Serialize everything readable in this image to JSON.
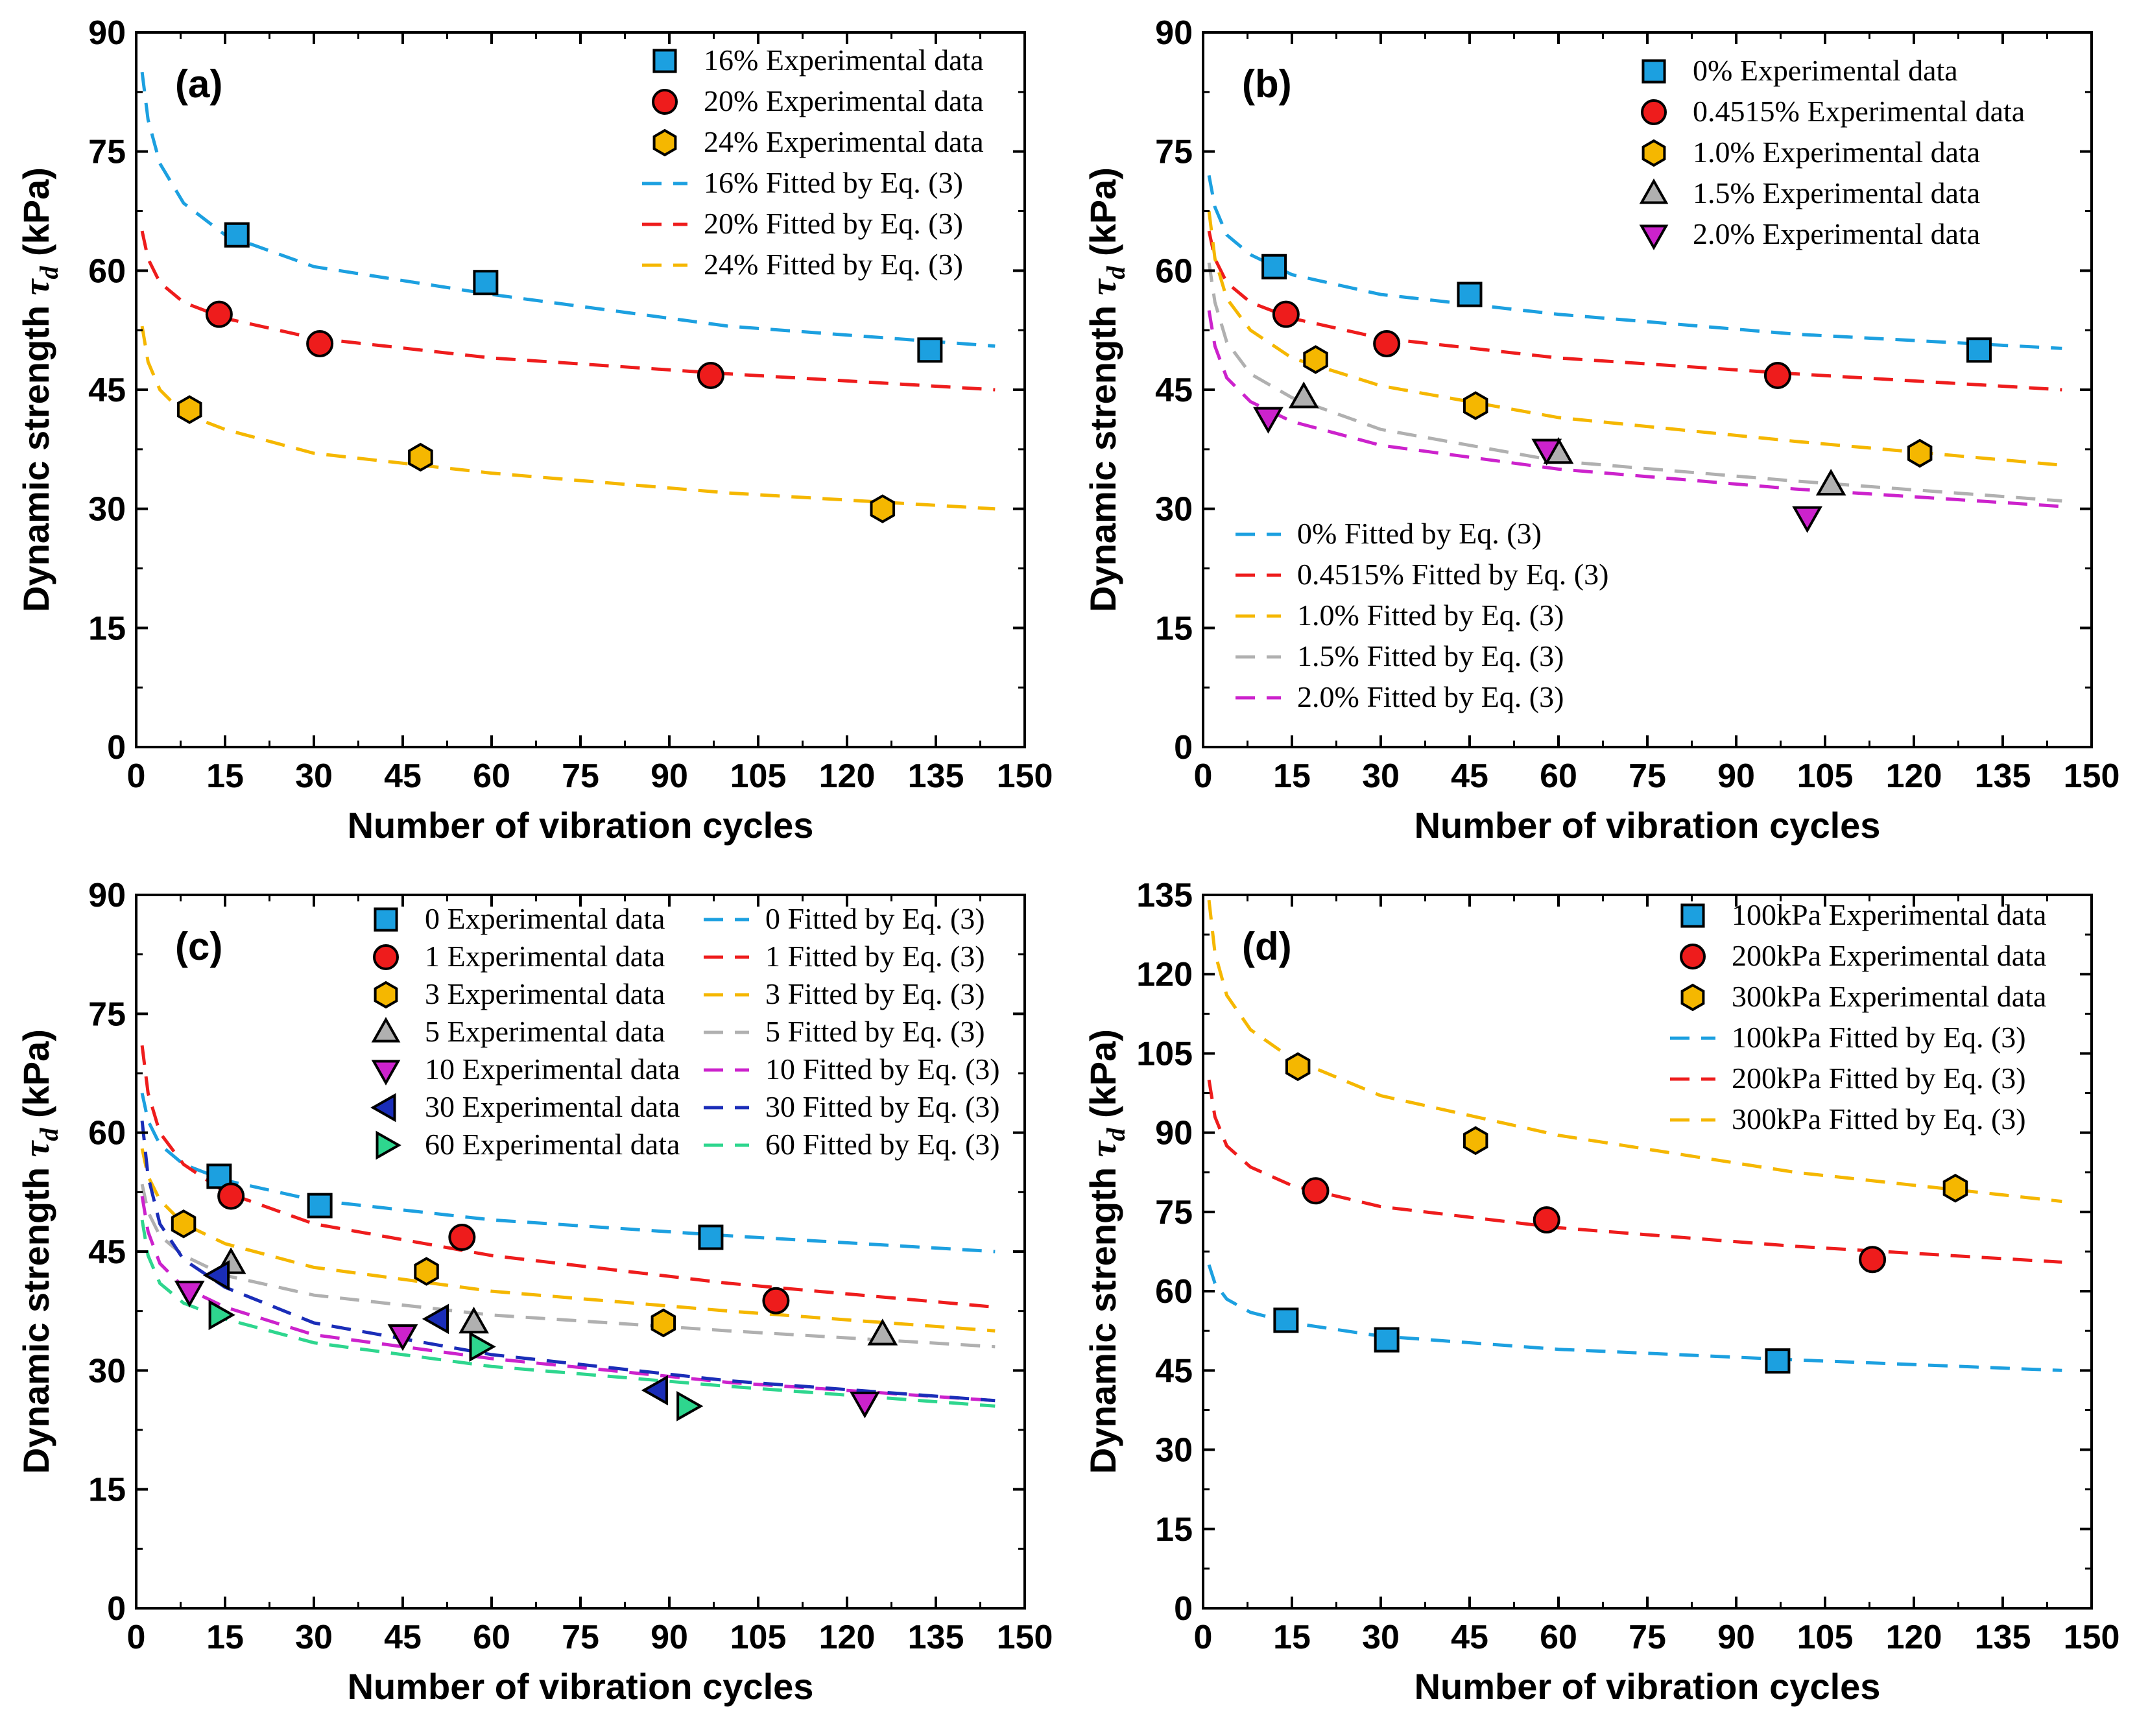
{
  "figure_title": "",
  "chart_data": [
    {
      "type": "scatter",
      "panel_label": "(a)",
      "xlabel": "Number of vibration cycles",
      "ylabel_main": "Dynamic strength",
      "ylabel_symbol": "τ",
      "ylabel_sub": "d",
      "ylabel_unit": "(kPa)",
      "xlim": [
        0,
        150
      ],
      "ylim": [
        0,
        90
      ],
      "xticks": [
        0,
        15,
        30,
        45,
        60,
        75,
        90,
        105,
        120,
        135,
        150
      ],
      "yticks": [
        0,
        15,
        30,
        45,
        60,
        75,
        90
      ],
      "legend_layout": "single-top-right",
      "series": [
        {
          "name": "16% Experimental data",
          "marker": "square",
          "color": "#1CA0E0",
          "x": [
            17,
            59,
            134
          ],
          "y": [
            64.5,
            58.5,
            50
          ]
        },
        {
          "name": "20% Experimental data",
          "marker": "circle",
          "color": "#EE1C1C",
          "x": [
            14,
            31,
            97
          ],
          "y": [
            54.5,
            50.8,
            46.8
          ]
        },
        {
          "name": "24% Experimental data",
          "marker": "hexagon",
          "color": "#F5B700",
          "x": [
            9,
            48,
            126
          ],
          "y": [
            42.5,
            36.5,
            30
          ]
        }
      ],
      "fits": [
        {
          "name": "16% Fitted by Eq. (3)",
          "color": "#1CA0E0",
          "x": [
            1,
            2,
            4,
            8,
            15,
            30,
            60,
            100,
            145
          ],
          "y": [
            85,
            79,
            73.5,
            68.5,
            64.5,
            60.5,
            57,
            53,
            50.5
          ]
        },
        {
          "name": "20% Fitted by Eq. (3)",
          "color": "#EE1C1C",
          "x": [
            1,
            2,
            4,
            8,
            15,
            30,
            60,
            100,
            145
          ],
          "y": [
            65,
            61.5,
            58.5,
            56,
            54,
            51.5,
            49,
            47,
            45
          ]
        },
        {
          "name": "24% Fitted by Eq. (3)",
          "color": "#F5B700",
          "x": [
            1,
            2,
            4,
            8,
            15,
            30,
            60,
            100,
            145
          ],
          "y": [
            53,
            48.5,
            45,
            42,
            40,
            37,
            34.5,
            32,
            30
          ]
        }
      ]
    },
    {
      "type": "scatter",
      "panel_label": "(b)",
      "xlabel": "Number of vibration cycles",
      "ylabel_main": "Dynamic strength",
      "ylabel_symbol": "τ",
      "ylabel_sub": "d",
      "ylabel_unit": "(kPa)",
      "xlim": [
        0,
        150
      ],
      "ylim": [
        0,
        90
      ],
      "xticks": [
        0,
        15,
        30,
        45,
        60,
        75,
        90,
        105,
        120,
        135,
        150
      ],
      "yticks": [
        0,
        15,
        30,
        45,
        60,
        75,
        90
      ],
      "legend_layout": "split-top-right-and-bottom-left",
      "series": [
        {
          "name": "0% Experimental data",
          "marker": "square",
          "color": "#1CA0E0",
          "x": [
            12,
            45,
            131
          ],
          "y": [
            60.5,
            57,
            50
          ]
        },
        {
          "name": "0.4515% Experimental data",
          "marker": "circle",
          "color": "#EE1C1C",
          "x": [
            14,
            31,
            97
          ],
          "y": [
            54.5,
            50.8,
            46.8
          ]
        },
        {
          "name": "1.0% Experimental data",
          "marker": "hexagon",
          "color": "#F5B700",
          "x": [
            19,
            46,
            121
          ],
          "y": [
            48.8,
            43,
            37
          ]
        },
        {
          "name": "1.5% Experimental data",
          "marker": "triangle-up",
          "color": "#B0B0B0",
          "x": [
            17,
            60,
            106
          ],
          "y": [
            44,
            37,
            33
          ]
        },
        {
          "name": "2.0% Experimental data",
          "marker": "triangle-down",
          "color": "#CC22CC",
          "x": [
            11,
            58,
            102
          ],
          "y": [
            41.5,
            37.5,
            29
          ]
        }
      ],
      "fits": [
        {
          "name": "0% Fitted by Eq. (3)",
          "color": "#1CA0E0",
          "x": [
            1,
            2,
            4,
            8,
            15,
            30,
            60,
            100,
            145
          ],
          "y": [
            72,
            68,
            64.5,
            62,
            59.5,
            57,
            54.5,
            52,
            50.2
          ]
        },
        {
          "name": "0.4515% Fitted by Eq. (3)",
          "color": "#EE1C1C",
          "x": [
            1,
            2,
            4,
            8,
            15,
            30,
            60,
            100,
            145
          ],
          "y": [
            65,
            61.5,
            58.5,
            56,
            54,
            51.5,
            49,
            47,
            45
          ]
        },
        {
          "name": "1.0% Fitted by Eq. (3)",
          "color": "#F5B700",
          "x": [
            1,
            2,
            4,
            8,
            15,
            30,
            60,
            100,
            145
          ],
          "y": [
            67.5,
            61.5,
            56.5,
            52.5,
            49,
            45.5,
            41.5,
            38.5,
            35.5
          ]
        },
        {
          "name": "1.5% Fitted by Eq. (3)",
          "color": "#B0B0B0",
          "x": [
            1,
            2,
            4,
            8,
            15,
            30,
            60,
            100,
            145
          ],
          "y": [
            61,
            56,
            51,
            47,
            44,
            40,
            36,
            33.5,
            31
          ]
        },
        {
          "name": "2.0% Fitted by Eq. (3)",
          "color": "#CC22CC",
          "x": [
            1,
            2,
            4,
            8,
            15,
            30,
            60,
            100,
            145
          ],
          "y": [
            55,
            50.5,
            46.5,
            43.5,
            41,
            38,
            35,
            32.5,
            30.3
          ]
        }
      ]
    },
    {
      "type": "scatter",
      "panel_label": "(c)",
      "xlabel": "Number of vibration cycles",
      "ylabel_main": "Dynamic strength",
      "ylabel_symbol": "τ",
      "ylabel_sub": "d",
      "ylabel_unit": "(kPa)",
      "xlim": [
        0,
        150
      ],
      "ylim": [
        0,
        90
      ],
      "xticks": [
        0,
        15,
        30,
        45,
        60,
        75,
        90,
        105,
        120,
        135,
        150
      ],
      "yticks": [
        0,
        15,
        30,
        45,
        60,
        75,
        90
      ],
      "legend_layout": "two-column-top-right",
      "series": [
        {
          "name": "0 Experimental data",
          "marker": "square",
          "color": "#1CA0E0",
          "x": [
            14,
            31,
            97
          ],
          "y": [
            54.5,
            50.8,
            46.8
          ]
        },
        {
          "name": "1 Experimental data",
          "marker": "circle",
          "color": "#EE1C1C",
          "x": [
            16,
            55,
            108
          ],
          "y": [
            52,
            46.8,
            38.8
          ]
        },
        {
          "name": "3 Experimental data",
          "marker": "hexagon",
          "color": "#F5B700",
          "x": [
            8,
            49,
            89
          ],
          "y": [
            48.5,
            42.5,
            36
          ]
        },
        {
          "name": "5 Experimental data",
          "marker": "triangle-up",
          "color": "#B0B0B0",
          "x": [
            16,
            57,
            126
          ],
          "y": [
            43.5,
            36,
            34.5
          ]
        },
        {
          "name": "10 Experimental data",
          "marker": "triangle-down",
          "color": "#CC22CC",
          "x": [
            9,
            45,
            123
          ],
          "y": [
            40,
            34.5,
            26
          ]
        },
        {
          "name": "30 Experimental data",
          "marker": "triangle-left",
          "color": "#1A2DB8",
          "x": [
            14,
            51,
            88
          ],
          "y": [
            42,
            36.5,
            27.5
          ]
        },
        {
          "name": "60 Experimental data",
          "marker": "triangle-right",
          "color": "#2ED68E",
          "x": [
            14,
            58,
            93
          ],
          "y": [
            37,
            33,
            25.5
          ]
        }
      ],
      "fits": [
        {
          "name": "0 Fitted by Eq. (3)",
          "color": "#1CA0E0",
          "x": [
            1,
            2,
            4,
            8,
            15,
            30,
            60,
            100,
            145
          ],
          "y": [
            65,
            61.5,
            58.5,
            56,
            54,
            51.5,
            49,
            47,
            45
          ]
        },
        {
          "name": "1 Fitted by Eq. (3)",
          "color": "#EE1C1C",
          "x": [
            1,
            2,
            4,
            8,
            15,
            30,
            60,
            100,
            145
          ],
          "y": [
            71,
            65,
            60,
            56,
            52.5,
            48.5,
            44.5,
            41,
            38
          ]
        },
        {
          "name": "3 Fitted by Eq. (3)",
          "color": "#F5B700",
          "x": [
            1,
            2,
            4,
            8,
            15,
            30,
            60,
            100,
            145
          ],
          "y": [
            58,
            54.5,
            51.5,
            48.5,
            46,
            43,
            40,
            37.5,
            35
          ]
        },
        {
          "name": "5 Fitted by Eq. (3)",
          "color": "#B0B0B0",
          "x": [
            1,
            2,
            4,
            8,
            15,
            30,
            60,
            100,
            145
          ],
          "y": [
            53.5,
            50,
            47,
            44.5,
            42,
            39.5,
            37,
            35,
            33
          ]
        },
        {
          "name": "10 Fitted by Eq. (3)",
          "color": "#CC22CC",
          "x": [
            1,
            2,
            4,
            8,
            15,
            30,
            60,
            100,
            145
          ],
          "y": [
            52,
            47.5,
            43.5,
            40.5,
            38,
            34.5,
            31.5,
            28.5,
            26.2
          ]
        },
        {
          "name": "30 Fitted by Eq. (3)",
          "color": "#1A2DB8",
          "x": [
            1,
            2,
            4,
            8,
            15,
            30,
            60,
            100,
            145
          ],
          "y": [
            61.5,
            54.5,
            48.5,
            44,
            40.5,
            36,
            32,
            28.7,
            26.2
          ]
        },
        {
          "name": "60 Fitted by Eq. (3)",
          "color": "#2ED68E",
          "x": [
            1,
            2,
            4,
            8,
            15,
            30,
            60,
            100,
            145
          ],
          "y": [
            49,
            44.5,
            41,
            38.5,
            36.5,
            33.5,
            30.5,
            28,
            25.5
          ]
        }
      ]
    },
    {
      "type": "scatter",
      "panel_label": "(d)",
      "xlabel": "Number of vibration cycles",
      "ylabel_main": "Dynamic strength",
      "ylabel_symbol": "τ",
      "ylabel_sub": "d",
      "ylabel_unit": "(kPa)",
      "xlim": [
        0,
        150
      ],
      "ylim": [
        0,
        135
      ],
      "xticks": [
        0,
        15,
        30,
        45,
        60,
        75,
        90,
        105,
        120,
        135,
        150
      ],
      "yticks": [
        0,
        15,
        30,
        45,
        60,
        75,
        90,
        105,
        120,
        135
      ],
      "legend_layout": "single-top-right",
      "series": [
        {
          "name": "100kPa Experimental data",
          "marker": "square",
          "color": "#1CA0E0",
          "x": [
            14,
            31,
            97
          ],
          "y": [
            54.5,
            50.8,
            46.8
          ]
        },
        {
          "name": "200kPa Experimental data",
          "marker": "circle",
          "color": "#EE1C1C",
          "x": [
            19,
            58,
            113
          ],
          "y": [
            79,
            73.5,
            66
          ]
        },
        {
          "name": "300kPa Experimental data",
          "marker": "hexagon",
          "color": "#F5B700",
          "x": [
            16,
            46,
            127
          ],
          "y": [
            102.5,
            88.5,
            79.5
          ]
        }
      ],
      "fits": [
        {
          "name": "100kPa Fitted by Eq. (3)",
          "color": "#1CA0E0",
          "x": [
            1,
            2,
            4,
            8,
            15,
            30,
            60,
            100,
            145
          ],
          "y": [
            65,
            61.5,
            58.5,
            56,
            54,
            51.5,
            49,
            47,
            45
          ]
        },
        {
          "name": "200kPa Fitted by Eq. (3)",
          "color": "#EE1C1C",
          "x": [
            1,
            2,
            4,
            8,
            15,
            30,
            60,
            100,
            145
          ],
          "y": [
            100,
            93,
            87.5,
            83.5,
            80,
            76,
            72,
            68.5,
            65.5
          ]
        },
        {
          "name": "300kPa Fitted by Eq. (3)",
          "color": "#F5B700",
          "x": [
            1,
            2,
            4,
            8,
            15,
            30,
            60,
            100,
            145
          ],
          "y": [
            134,
            124,
            116,
            109.5,
            104,
            97,
            89.5,
            82.5,
            77
          ]
        }
      ]
    }
  ]
}
